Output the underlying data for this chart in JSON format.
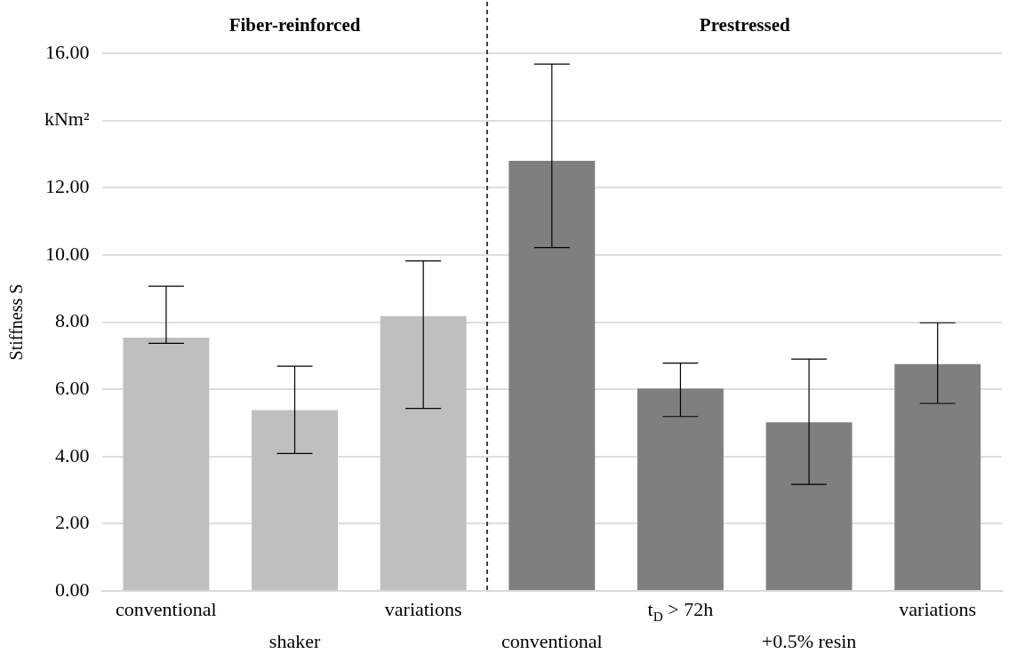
{
  "chart_data": {
    "type": "bar",
    "ylabel": "Stiffness S",
    "categories": [
      "conventional",
      "shaker",
      "variations",
      "conventional",
      "t$_{D}$ > 72h",
      "+0.5% resin",
      "variations"
    ],
    "values": [
      7.54,
      5.38,
      8.18,
      12.8,
      6.02,
      5.02,
      6.75
    ],
    "colors": [
      "#bfbfbf",
      "#bfbfbf",
      "#bfbfbf",
      "#7f7f7f",
      "#7f7f7f",
      "#7f7f7f",
      "#7f7f7f"
    ],
    "errors": [
      [
        7.37,
        9.07
      ],
      [
        4.09,
        6.69
      ],
      [
        5.43,
        9.82
      ],
      [
        10.22,
        15.68
      ],
      [
        5.19,
        6.78
      ],
      [
        3.17,
        6.9
      ],
      [
        5.58,
        7.98
      ]
    ],
    "ylim": [
      0,
      16
    ],
    "yticks": [
      {
        "value": 0,
        "label": "0.00"
      },
      {
        "value": 2,
        "label": "2.00"
      },
      {
        "value": 4,
        "label": "4.00"
      },
      {
        "value": 6,
        "label": "6.00"
      },
      {
        "value": 8,
        "label": "8.00"
      },
      {
        "value": 10,
        "label": "10.00"
      },
      {
        "value": 12,
        "label": "12.00"
      },
      {
        "value": 14,
        "label": "kNm²"
      },
      {
        "value": 16,
        "label": "16.00"
      }
    ],
    "grid": "y",
    "annotations": [
      "Fiber-reinforced",
      "Prestressed"
    ]
  }
}
